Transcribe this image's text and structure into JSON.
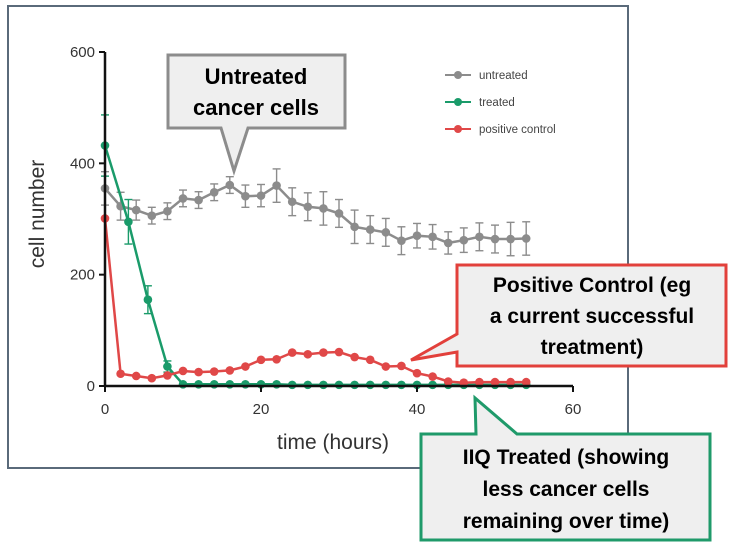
{
  "chart_data": {
    "type": "line",
    "title": "",
    "xlabel": "time (hours)",
    "ylabel": "cell number",
    "xlim": [
      0,
      60
    ],
    "ylim": [
      0,
      600
    ],
    "xticks": [
      "0",
      "20",
      "40",
      "60"
    ],
    "yticks": [
      "0",
      "200",
      "400",
      "600"
    ],
    "grid": false,
    "legend_position": "top-right",
    "series": [
      {
        "name": "untreated",
        "color": "#8c8c8c",
        "x": [
          0,
          2,
          4,
          6,
          8,
          10,
          12,
          14,
          16,
          18,
          20,
          22,
          24,
          26,
          28,
          30,
          32,
          34,
          36,
          38,
          40,
          42,
          44,
          46,
          48,
          50,
          52,
          54
        ],
        "values": [
          355,
          323,
          316,
          306,
          314,
          337,
          334,
          348,
          361,
          341,
          342,
          360,
          331,
          322,
          319,
          310,
          286,
          281,
          276,
          261,
          270,
          268,
          257,
          262,
          268,
          264,
          264,
          265
        ],
        "error": [
          30,
          25,
          18,
          15,
          15,
          15,
          15,
          15,
          15,
          20,
          20,
          30,
          25,
          25,
          30,
          25,
          30,
          25,
          25,
          25,
          22,
          22,
          20,
          22,
          25,
          25,
          30,
          30
        ]
      },
      {
        "name": "treated",
        "color": "#1a9b6a",
        "x": [
          0,
          3,
          5.5,
          8,
          10,
          12,
          14,
          16,
          18,
          20,
          22,
          24,
          26,
          28,
          30,
          32,
          34,
          36,
          38,
          40,
          42,
          44,
          46,
          48,
          50,
          52,
          54
        ],
        "values": [
          432,
          295,
          155,
          35,
          3,
          3,
          3,
          3,
          3,
          3,
          3,
          2,
          2,
          2,
          2,
          2,
          2,
          2,
          2,
          2,
          2,
          2,
          2,
          2,
          2,
          2,
          2
        ],
        "error": [
          55,
          40,
          25,
          10,
          0,
          0,
          0,
          0,
          0,
          0,
          0,
          0,
          0,
          0,
          0,
          0,
          0,
          0,
          0,
          0,
          0,
          0,
          0,
          0,
          0,
          0,
          0
        ]
      },
      {
        "name": "positive control",
        "color": "#e04848",
        "x": [
          0,
          2,
          4,
          6,
          8,
          10,
          12,
          14,
          16,
          18,
          20,
          22,
          24,
          26,
          28,
          30,
          32,
          34,
          36,
          38,
          40,
          42,
          44,
          46,
          48,
          50,
          52,
          54
        ],
        "values": [
          301,
          22,
          18,
          14,
          19,
          27,
          25,
          26,
          28,
          35,
          47,
          48,
          60,
          57,
          60,
          61,
          52,
          47,
          35,
          36,
          23,
          17,
          8,
          6,
          7,
          7,
          7,
          7
        ],
        "error": [
          0,
          0,
          0,
          0,
          0,
          0,
          0,
          0,
          0,
          0,
          0,
          0,
          0,
          0,
          0,
          0,
          0,
          0,
          0,
          0,
          0,
          0,
          0,
          0,
          0,
          0,
          0,
          0
        ]
      }
    ]
  },
  "callouts": {
    "untreated": [
      "Untreated",
      "cancer cells"
    ],
    "positive": [
      "Positive Control (eg",
      "a current successful",
      "treatment)"
    ],
    "treated": [
      "IIQ Treated (showing",
      "less cancer cells",
      "remaining over time)"
    ]
  },
  "colors": {
    "frame": "#5a6a7a",
    "axis": "#111111",
    "callout_gray_border": "#8c8c8c",
    "callout_red_border": "#e2403b",
    "callout_green_border": "#1f9a6a",
    "callout_fill": "#efefef"
  }
}
